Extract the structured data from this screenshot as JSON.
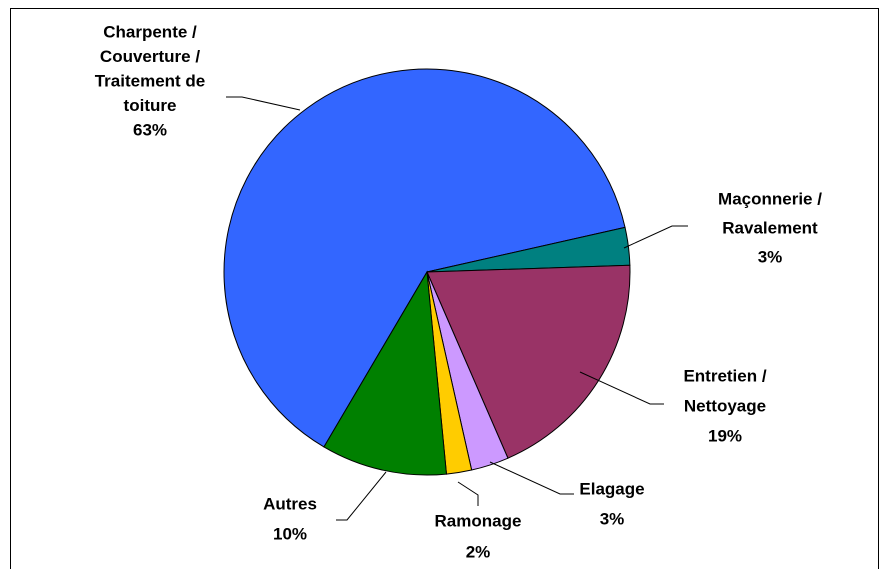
{
  "chart_data": {
    "type": "pie",
    "categories": [
      [
        "Charpente /",
        "Couverture /",
        "Traitement de",
        "toiture"
      ],
      [
        "Maçonnerie /",
        "Ravalement"
      ],
      [
        "Entretien /",
        "Nettoyage"
      ],
      [
        "Elagage"
      ],
      [
        "Ramonage"
      ],
      [
        "Autres"
      ]
    ],
    "values": [
      63,
      3,
      19,
      3,
      2,
      10
    ],
    "value_labels": [
      "63%",
      "3%",
      "19%",
      "3%",
      "2%",
      "10%"
    ],
    "colors": [
      "#3366ff",
      "#008080",
      "#993366",
      "#cc99ff",
      "#ffcc00",
      "#008000"
    ]
  }
}
